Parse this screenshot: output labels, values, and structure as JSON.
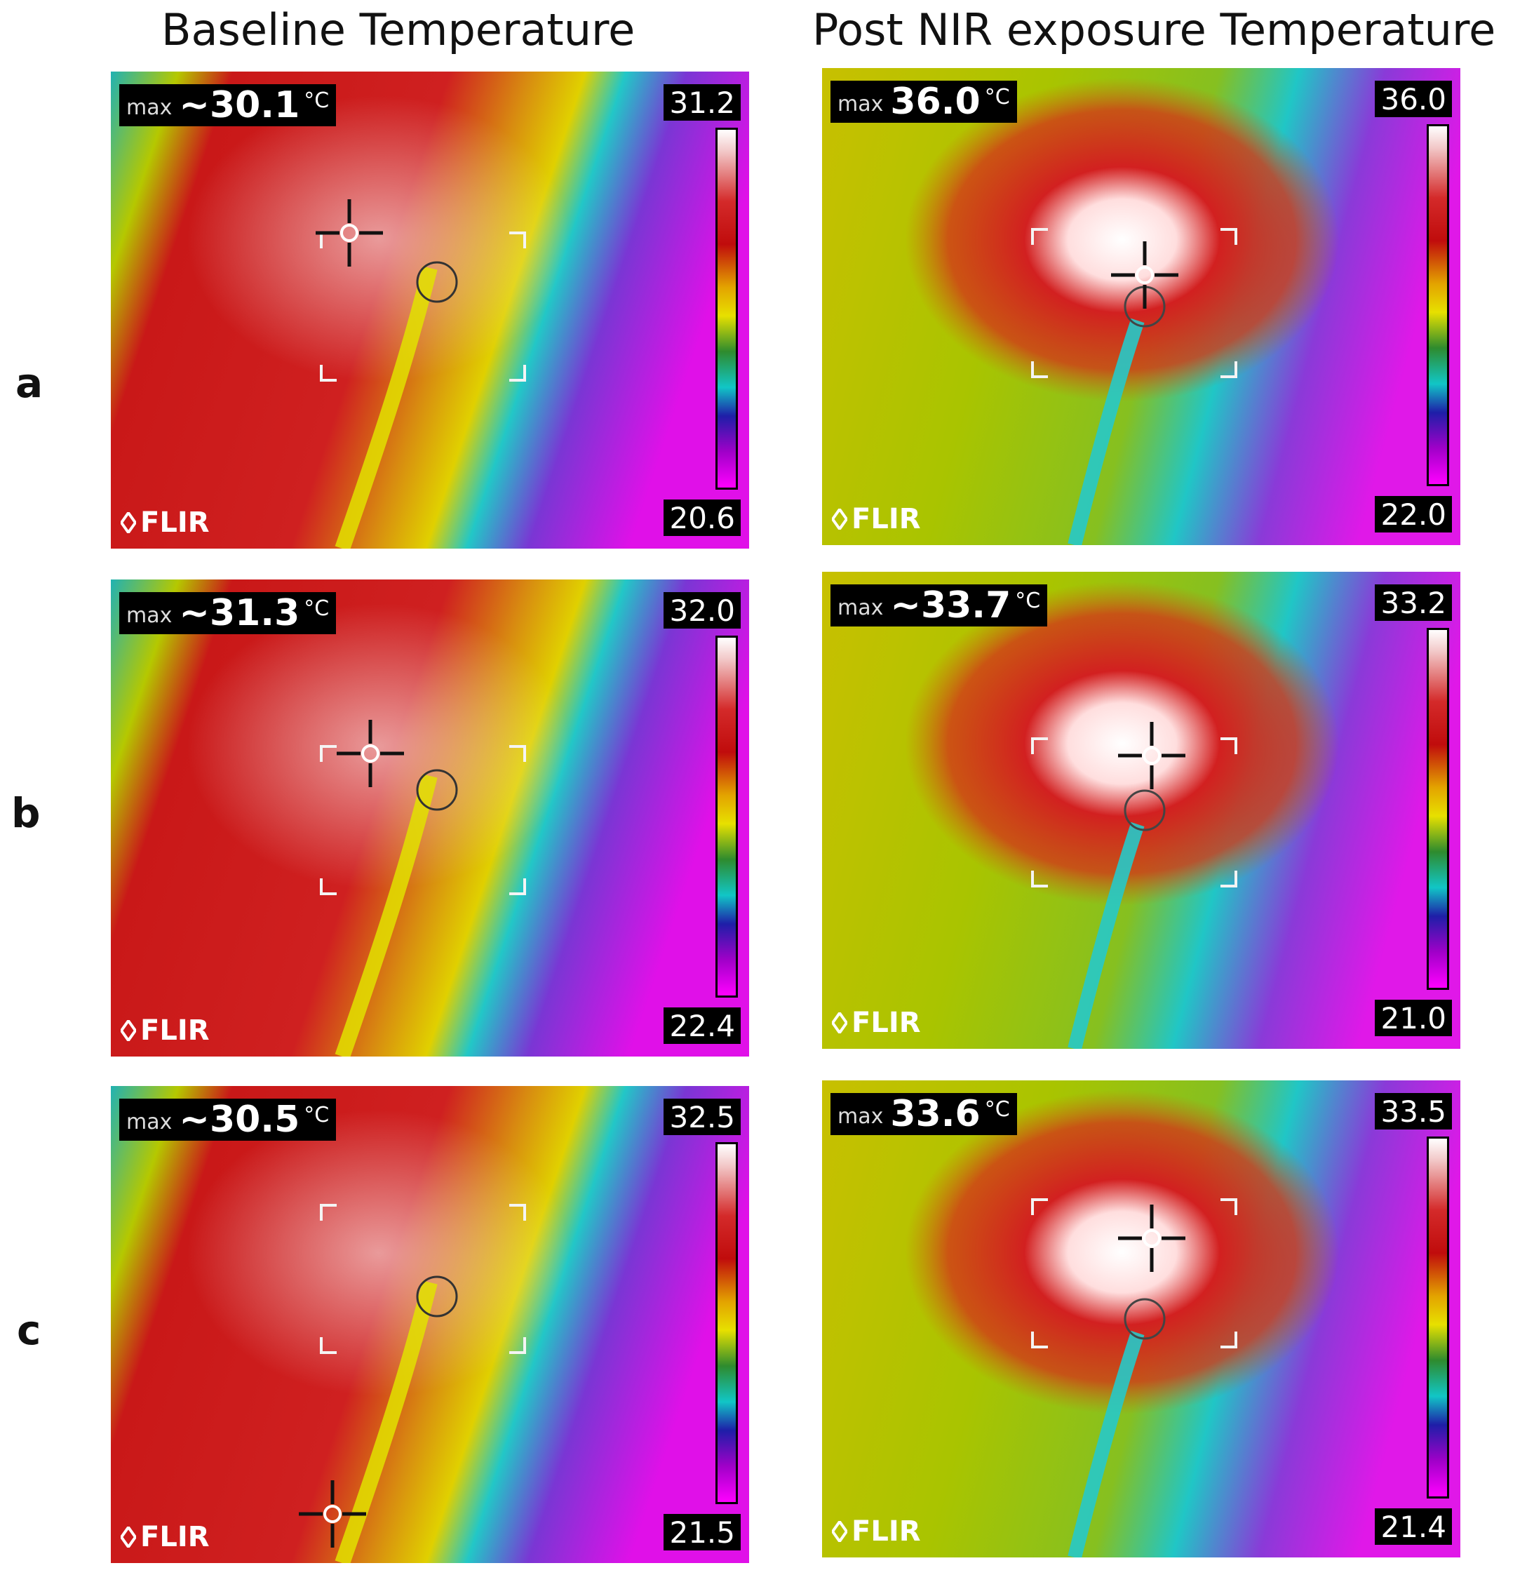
{
  "headers": {
    "baseline": "Baseline Temperature",
    "post": "Post NIR exposure Temperature"
  },
  "rows": [
    {
      "label": "a",
      "baseline": {
        "max_label": "max",
        "max_value": "~30.1",
        "unit": "°C",
        "scale_max": "31.2",
        "scale_min": "20.6",
        "brand": "FLIR"
      },
      "post": {
        "max_label": "max",
        "max_value": "36.0",
        "unit": "°C",
        "scale_max": "36.0",
        "scale_min": "22.0",
        "brand": "FLIR"
      }
    },
    {
      "label": "b",
      "baseline": {
        "max_label": "max",
        "max_value": "~31.3",
        "unit": "°C",
        "scale_max": "32.0",
        "scale_min": "22.4",
        "brand": "FLIR"
      },
      "post": {
        "max_label": "max",
        "max_value": "~33.7",
        "unit": "°C",
        "scale_max": "33.2",
        "scale_min": "21.0",
        "brand": "FLIR"
      }
    },
    {
      "label": "c",
      "baseline": {
        "max_label": "max",
        "max_value": "~30.5",
        "unit": "°C",
        "scale_max": "32.5",
        "scale_min": "21.5",
        "brand": "FLIR"
      },
      "post": {
        "max_label": "max",
        "max_value": "33.6",
        "unit": "°C",
        "scale_max": "33.5",
        "scale_min": "21.4",
        "brand": "FLIR"
      }
    }
  ]
}
